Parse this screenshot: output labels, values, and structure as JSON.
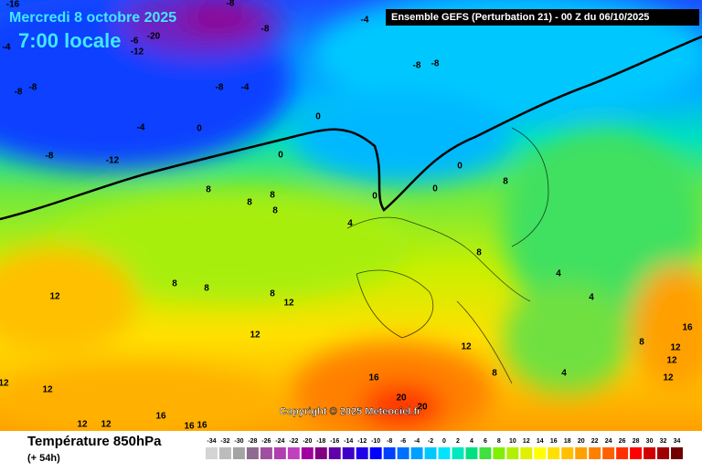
{
  "header": {
    "date": "Mercredi 8 octobre 2025",
    "time": "7:00 locale",
    "model": "Ensemble GEFS  (Perturbation 21)  -  00 Z du 06/10/2025"
  },
  "map": {
    "contour_labels": [
      -16,
      -8,
      -4,
      -8,
      -20,
      -6,
      -12,
      -4,
      -8,
      -8,
      -8,
      -4,
      -8,
      -8,
      0,
      -4,
      0,
      -8,
      -12,
      0,
      0,
      0,
      0,
      8,
      8,
      8,
      8,
      4,
      8,
      8,
      8,
      8,
      8,
      12,
      12,
      4,
      4,
      12,
      12,
      8,
      12,
      12,
      16,
      12,
      4,
      8,
      16,
      12,
      12,
      20,
      20,
      12,
      12,
      16,
      16,
      16
    ],
    "copyright": "Copyright © 2025 Meteociel.fr"
  },
  "footer": {
    "title": "Température 850hPa",
    "lead": "(+ 54h)"
  },
  "legend": {
    "labels": [
      -34,
      -32,
      -30,
      -28,
      -26,
      -24,
      -22,
      -20,
      -18,
      -16,
      -14,
      -12,
      -10,
      -8,
      -6,
      -4,
      -2,
      0,
      2,
      4,
      6,
      8,
      10,
      12,
      14,
      16,
      18,
      20,
      22,
      24,
      26,
      28,
      30,
      32,
      34
    ],
    "colors": [
      "#d4d4d4",
      "#bcbcbc",
      "#a4a4a4",
      "#8e6a8e",
      "#a050a0",
      "#b040b0",
      "#c040c0",
      "#a000a0",
      "#800080",
      "#6000a8",
      "#4000c8",
      "#2000e8",
      "#0000ff",
      "#0040ff",
      "#0070ff",
      "#00a0ff",
      "#00c8ff",
      "#00e4ff",
      "#00e8c0",
      "#00e080",
      "#40e040",
      "#80f000",
      "#b0f000",
      "#e0f000",
      "#ffff00",
      "#ffe000",
      "#ffc000",
      "#ffa000",
      "#ff8000",
      "#ff6000",
      "#ff3000",
      "#ff0000",
      "#d00000",
      "#a00000",
      "#700000"
    ]
  }
}
